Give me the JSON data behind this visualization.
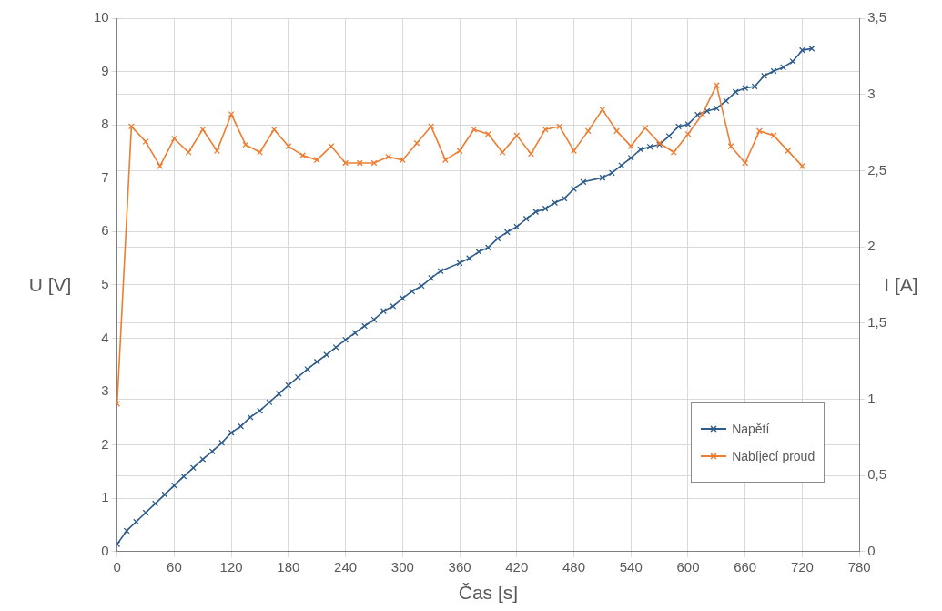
{
  "chart_data": {
    "type": "line",
    "xlabel": "Čas [s]",
    "ylabel": "U [V]",
    "y2label": "I [A]",
    "xlim": [
      0,
      780
    ],
    "xticks": [
      0,
      60,
      120,
      180,
      240,
      300,
      360,
      420,
      480,
      540,
      600,
      660,
      720,
      780
    ],
    "ylim": [
      0,
      10
    ],
    "yticks": [
      0,
      1,
      2,
      3,
      4,
      5,
      6,
      7,
      8,
      9,
      10
    ],
    "y2lim": [
      0,
      3.5
    ],
    "y2ticks": [
      0,
      {
        "value": 0.5,
        "label": "0,5"
      },
      1,
      {
        "value": 1.5,
        "label": "1,5"
      },
      2,
      {
        "value": 2.5,
        "label": "2,5"
      },
      3,
      {
        "value": 3.5,
        "label": "3,5"
      }
    ],
    "grid": true,
    "legend": "bottom right",
    "marker": "cross",
    "line_style": "solid",
    "series": [
      {
        "name": "Napětí",
        "color": "#2e5c8a",
        "x": [
          0,
          10,
          20,
          30,
          40,
          50,
          60,
          70,
          80,
          90,
          100,
          110,
          120,
          130,
          140,
          150,
          160,
          170,
          180,
          190,
          200,
          210,
          220,
          230,
          240,
          250,
          260,
          270,
          280,
          290,
          300,
          310,
          320,
          330,
          340,
          360,
          370,
          380,
          390,
          400,
          410,
          420,
          430,
          440,
          450,
          460,
          470,
          480,
          490,
          510,
          520,
          530,
          540,
          550,
          560,
          570,
          580,
          590,
          600,
          610,
          620,
          630,
          640,
          650,
          660,
          670,
          680,
          690,
          700,
          710,
          720,
          730
        ],
        "values": [
          0.14,
          0.39,
          0.56,
          0.73,
          0.9,
          1.07,
          1.24,
          1.41,
          1.57,
          1.73,
          1.88,
          2.04,
          2.23,
          2.35,
          2.52,
          2.64,
          2.8,
          2.96,
          3.12,
          3.27,
          3.42,
          3.56,
          3.69,
          3.83,
          3.97,
          4.1,
          4.23,
          4.35,
          4.51,
          4.6,
          4.75,
          4.88,
          4.98,
          5.13,
          5.26,
          5.41,
          5.5,
          5.62,
          5.7,
          5.87,
          5.99,
          6.09,
          6.24,
          6.37,
          6.43,
          6.54,
          6.62,
          6.8,
          6.93,
          7.01,
          7.1,
          7.24,
          7.38,
          7.54,
          7.59,
          7.63,
          7.79,
          7.97,
          8.01,
          8.19,
          8.26,
          8.31,
          8.45,
          8.62,
          8.69,
          8.72,
          8.92,
          9.01,
          9.08,
          9.19,
          9.4,
          9.43
        ]
      },
      {
        "name": "Nabíjecí proud",
        "color": "#ed7d31",
        "axis": "y2",
        "x": [
          0,
          15,
          30,
          45,
          60,
          75,
          90,
          105,
          120,
          135,
          150,
          165,
          180,
          195,
          210,
          225,
          240,
          255,
          270,
          285,
          300,
          315,
          330,
          345,
          360,
          375,
          390,
          405,
          420,
          435,
          450,
          465,
          480,
          495,
          510,
          525,
          540,
          555,
          570,
          585,
          600,
          615,
          630,
          645,
          660,
          675,
          690,
          705,
          720
        ],
        "values": [
          0.97,
          2.79,
          2.69,
          2.53,
          2.71,
          2.62,
          2.77,
          2.63,
          2.87,
          2.67,
          2.62,
          2.77,
          2.66,
          2.6,
          2.57,
          2.66,
          2.55,
          2.55,
          2.55,
          2.59,
          2.57,
          2.68,
          2.79,
          2.57,
          2.63,
          2.77,
          2.74,
          2.62,
          2.73,
          2.61,
          2.77,
          2.79,
          2.63,
          2.76,
          2.9,
          2.76,
          2.66,
          2.78,
          2.68,
          2.62,
          2.74,
          2.87,
          3.06,
          2.66,
          2.55,
          2.76,
          2.73,
          2.63,
          2.53
        ]
      }
    ]
  }
}
